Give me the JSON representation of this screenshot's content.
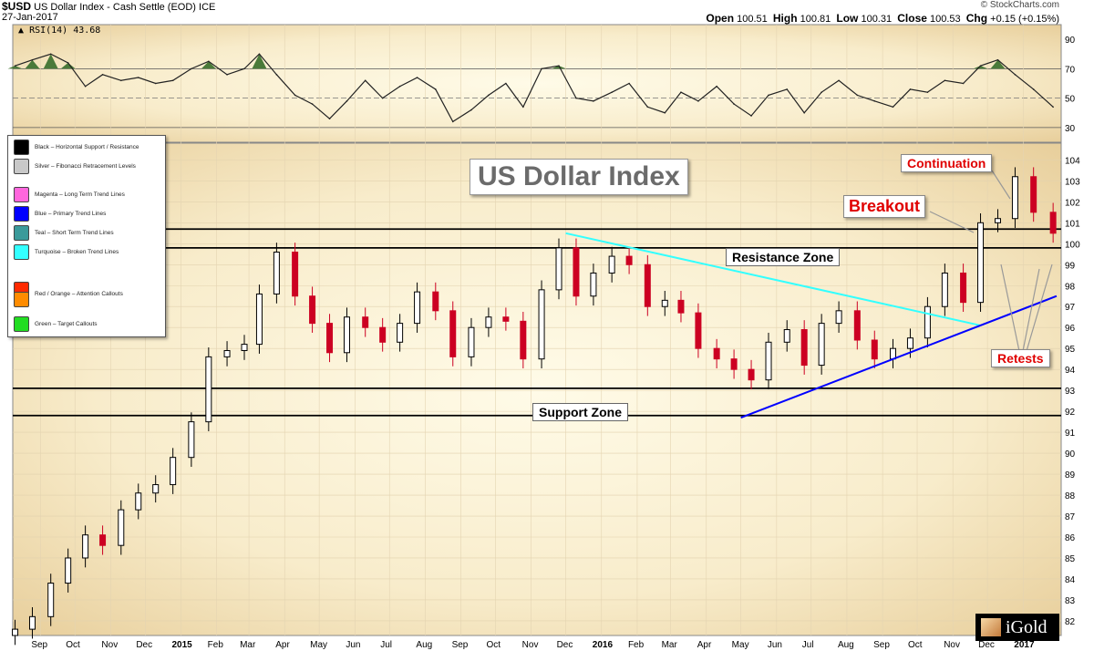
{
  "header": {
    "symbol": "$USD",
    "name": "US Dollar Index - Cash Settle (EOD)",
    "exchange": "ICE",
    "date": "27-Jan-2017",
    "credit": "© StockCharts.com",
    "open_label": "Open",
    "open": "100.51",
    "high_label": "High",
    "high": "100.81",
    "low_label": "Low",
    "low": "100.31",
    "close_label": "Close",
    "close": "100.53",
    "chg_label": "Chg",
    "chg": "+0.15 (+0.15%)",
    "rsi_label": "RSI(14) 43.68"
  },
  "legend": [
    {
      "color": "#000000",
      "label": "Black – Horizontal Support / Resistance"
    },
    {
      "color": "#c8c8c8",
      "label": "Silver – Fibonacci Retracement Levels"
    },
    {
      "color": "#ff66dd",
      "label": "Magenta – Long Term Trend Lines"
    },
    {
      "color": "#0000ff",
      "label": "Blue – Primary Trend Lines"
    },
    {
      "color": "#3a9a9a",
      "label": "Teal – Short Term Trend Lines"
    },
    {
      "color": "#33ffff",
      "label": "Turquoise – Broken Trend Lines"
    },
    {
      "color": "#ff2a00",
      "label": ""
    },
    {
      "color": "#ff8c00",
      "label": "Red / Orange – Attention Callouts"
    },
    {
      "color": "#22dd22",
      "label": "Green – Target Callouts"
    }
  ],
  "annotations": {
    "title": "US Dollar Index",
    "breakout": "Breakout",
    "continuation": "Continuation",
    "retests": "Retests",
    "resistance_zone": "Resistance Zone",
    "support_zone": "Support Zone"
  },
  "logo_text": "iGold",
  "colors": {
    "panel_bg_outer": "#e8cf9c",
    "panel_bg_inner": "#fffbe8",
    "up_candle": "#000000",
    "down_candle": "#cc0022",
    "support_resistance": "#000000",
    "broken_trend": "#33ffff",
    "primary_trend": "#0000ff",
    "rsi_fill": "#4a7a3a",
    "callout_text": "#e00000"
  },
  "chart_data": [
    {
      "type": "line",
      "name": "RSI(14)",
      "ylim": [
        20,
        100
      ],
      "y_ticks": [
        30,
        50,
        70,
        90
      ],
      "overbought": 70,
      "oversold": 30,
      "x_dates": [
        "2014-08-10",
        "2014-08-25",
        "2014-09-10",
        "2014-09-25",
        "2014-10-10",
        "2014-10-25",
        "2014-11-10",
        "2014-11-25",
        "2014-12-10",
        "2014-12-25",
        "2015-01-10",
        "2015-01-25",
        "2015-02-10",
        "2015-02-25",
        "2015-03-10",
        "2015-03-25",
        "2015-04-10",
        "2015-04-25",
        "2015-05-10",
        "2015-05-25",
        "2015-06-10",
        "2015-06-25",
        "2015-07-10",
        "2015-07-25",
        "2015-08-10",
        "2015-08-25",
        "2015-09-10",
        "2015-09-25",
        "2015-10-10",
        "2015-10-25",
        "2015-11-10",
        "2015-11-25",
        "2015-12-10",
        "2015-12-25",
        "2016-01-10",
        "2016-01-25",
        "2016-02-10",
        "2016-02-25",
        "2016-03-10",
        "2016-03-25",
        "2016-04-10",
        "2016-04-25",
        "2016-05-10",
        "2016-05-25",
        "2016-06-10",
        "2016-06-25",
        "2016-07-10",
        "2016-07-25",
        "2016-08-10",
        "2016-08-25",
        "2016-09-10",
        "2016-09-25",
        "2016-10-10",
        "2016-10-25",
        "2016-11-10",
        "2016-11-25",
        "2016-12-10",
        "2016-12-25",
        "2017-01-10",
        "2017-01-27"
      ],
      "values": [
        72,
        76,
        80,
        74,
        58,
        66,
        62,
        64,
        60,
        62,
        70,
        75,
        66,
        70,
        80,
        66,
        52,
        46,
        36,
        48,
        62,
        50,
        58,
        64,
        56,
        34,
        42,
        52,
        60,
        44,
        70,
        72,
        50,
        48,
        54,
        60,
        44,
        40,
        54,
        48,
        58,
        46,
        38,
        52,
        56,
        40,
        54,
        62,
        52,
        48,
        44,
        56,
        54,
        62,
        60,
        72,
        76,
        66,
        56,
        44
      ]
    },
    {
      "type": "candlestick",
      "name": "$USD",
      "ylabel": "",
      "ylim": [
        81.3,
        104.8
      ],
      "y_ticks": [
        82,
        83,
        84,
        85,
        86,
        87,
        88,
        89,
        90,
        91,
        92,
        93,
        94,
        95,
        96,
        97,
        98,
        99,
        100,
        101,
        102,
        103,
        104
      ],
      "x_ticks": [
        {
          "date": "2014-09-01",
          "label": "Sep"
        },
        {
          "date": "2014-10-01",
          "label": "Oct"
        },
        {
          "date": "2014-11-01",
          "label": "Nov"
        },
        {
          "date": "2014-12-01",
          "label": "Dec"
        },
        {
          "date": "2015-01-01",
          "label": "2015"
        },
        {
          "date": "2015-02-01",
          "label": "Feb"
        },
        {
          "date": "2015-03-01",
          "label": "Mar"
        },
        {
          "date": "2015-04-01",
          "label": "Apr"
        },
        {
          "date": "2015-05-01",
          "label": "May"
        },
        {
          "date": "2015-06-01",
          "label": "Jun"
        },
        {
          "date": "2015-07-01",
          "label": "Jul"
        },
        {
          "date": "2015-08-01",
          "label": "Aug"
        },
        {
          "date": "2015-09-01",
          "label": "Sep"
        },
        {
          "date": "2015-10-01",
          "label": "Oct"
        },
        {
          "date": "2015-11-01",
          "label": "Nov"
        },
        {
          "date": "2015-12-01",
          "label": "Dec"
        },
        {
          "date": "2016-01-01",
          "label": "2016"
        },
        {
          "date": "2016-02-01",
          "label": "Feb"
        },
        {
          "date": "2016-03-01",
          "label": "Mar"
        },
        {
          "date": "2016-04-01",
          "label": "Apr"
        },
        {
          "date": "2016-05-01",
          "label": "May"
        },
        {
          "date": "2016-06-01",
          "label": "Jun"
        },
        {
          "date": "2016-07-01",
          "label": "Jul"
        },
        {
          "date": "2016-08-01",
          "label": "Aug"
        },
        {
          "date": "2016-09-01",
          "label": "Sep"
        },
        {
          "date": "2016-10-01",
          "label": "Oct"
        },
        {
          "date": "2016-11-01",
          "label": "Nov"
        },
        {
          "date": "2016-12-01",
          "label": "Dec"
        },
        {
          "date": "2017-01-01",
          "label": "2017"
        }
      ],
      "x_dates": [
        "2014-08-10",
        "2014-08-25",
        "2014-09-10",
        "2014-09-25",
        "2014-10-10",
        "2014-10-25",
        "2014-11-10",
        "2014-11-25",
        "2014-12-10",
        "2014-12-25",
        "2015-01-10",
        "2015-01-25",
        "2015-02-10",
        "2015-02-25",
        "2015-03-10",
        "2015-03-25",
        "2015-04-10",
        "2015-04-25",
        "2015-05-10",
        "2015-05-25",
        "2015-06-10",
        "2015-06-25",
        "2015-07-10",
        "2015-07-25",
        "2015-08-10",
        "2015-08-25",
        "2015-09-10",
        "2015-09-25",
        "2015-10-10",
        "2015-10-25",
        "2015-11-10",
        "2015-11-25",
        "2015-12-10",
        "2015-12-25",
        "2016-01-10",
        "2016-01-25",
        "2016-02-10",
        "2016-02-25",
        "2016-03-10",
        "2016-03-25",
        "2016-04-10",
        "2016-04-25",
        "2016-05-10",
        "2016-05-25",
        "2016-06-10",
        "2016-06-25",
        "2016-07-10",
        "2016-07-25",
        "2016-08-10",
        "2016-08-25",
        "2016-09-10",
        "2016-09-25",
        "2016-10-10",
        "2016-10-25",
        "2016-11-10",
        "2016-11-25",
        "2016-12-10",
        "2016-12-25",
        "2017-01-10",
        "2017-01-27"
      ],
      "close": [
        81.6,
        82.2,
        83.8,
        85.0,
        86.1,
        85.6,
        87.3,
        88.1,
        88.5,
        89.8,
        91.5,
        94.6,
        94.9,
        95.2,
        97.6,
        99.6,
        97.5,
        96.2,
        94.8,
        96.5,
        96.0,
        95.3,
        96.2,
        97.7,
        96.8,
        94.6,
        96.0,
        96.5,
        96.3,
        94.5,
        97.8,
        99.8,
        97.5,
        98.6,
        99.4,
        99.0,
        97.0,
        97.3,
        96.7,
        95.0,
        94.5,
        94.0,
        93.5,
        95.3,
        95.9,
        94.2,
        96.2,
        96.8,
        95.4,
        94.5,
        95.0,
        95.5,
        97.0,
        98.6,
        97.2,
        101.0,
        101.2,
        103.2,
        101.5,
        100.5
      ],
      "support_zone": [
        91.8,
        93.1
      ],
      "resistance_zone": [
        99.8,
        100.7
      ],
      "broken_trend_line": {
        "from": [
          "2015-12-01",
          100.5
        ],
        "to": [
          "2016-11-25",
          96.1
        ]
      },
      "primary_trend_line": {
        "from": [
          "2016-05-01",
          91.7
        ],
        "to": [
          "2017-01-30",
          97.5
        ]
      }
    }
  ]
}
